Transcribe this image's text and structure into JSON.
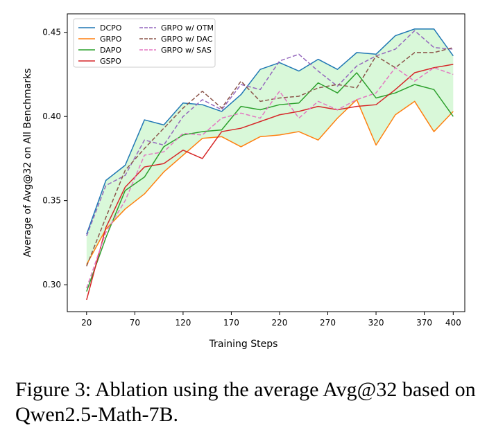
{
  "caption": "Figure 3: Ablation using the average Avg@32 based on Qwen2.5-Math-7B.",
  "chart_data": {
    "type": "line",
    "xlabel": "Training Steps",
    "ylabel": "Average of Avg@32 on All Benchmarks",
    "xlim": [
      0,
      412
    ],
    "ylim": [
      0.284,
      0.461
    ],
    "xticks": [
      20,
      70,
      120,
      170,
      220,
      270,
      320,
      370,
      400
    ],
    "yticks": [
      0.3,
      0.35,
      0.4,
      0.45
    ],
    "ytick_labels": [
      "0.30",
      "0.35",
      "0.40",
      "0.45"
    ],
    "legend_position": "top-left",
    "shaded_band": {
      "between": [
        "DCPO",
        "GRPO"
      ],
      "color": "#ccf5cc"
    },
    "x": [
      20,
      40,
      60,
      80,
      100,
      120,
      140,
      160,
      180,
      200,
      220,
      240,
      260,
      280,
      300,
      320,
      340,
      360,
      380,
      400
    ],
    "series": [
      {
        "name": "DCPO",
        "color": "#1f77b4",
        "dash": "solid",
        "values": [
          0.33,
          0.362,
          0.371,
          0.398,
          0.395,
          0.408,
          0.407,
          0.403,
          0.413,
          0.428,
          0.432,
          0.427,
          0.434,
          0.428,
          0.438,
          0.437,
          0.448,
          0.452,
          0.452,
          0.436
        ]
      },
      {
        "name": "GRPO",
        "color": "#ff7f0e",
        "dash": "solid",
        "values": [
          0.312,
          0.333,
          0.345,
          0.354,
          0.367,
          0.377,
          0.387,
          0.388,
          0.382,
          0.388,
          0.389,
          0.391,
          0.386,
          0.399,
          0.41,
          0.383,
          0.401,
          0.409,
          0.391,
          0.403
        ]
      },
      {
        "name": "DAPO",
        "color": "#2ca02c",
        "dash": "solid",
        "values": [
          0.296,
          0.328,
          0.356,
          0.364,
          0.382,
          0.389,
          0.391,
          0.392,
          0.406,
          0.404,
          0.407,
          0.408,
          0.42,
          0.414,
          0.426,
          0.411,
          0.414,
          0.419,
          0.416,
          0.4
        ]
      },
      {
        "name": "GSPO",
        "color": "#d62728",
        "dash": "solid",
        "values": [
          0.291,
          0.334,
          0.358,
          0.37,
          0.372,
          0.38,
          0.375,
          0.391,
          0.393,
          0.397,
          0.401,
          0.403,
          0.406,
          0.404,
          0.406,
          0.407,
          0.416,
          0.426,
          0.429,
          0.431
        ]
      },
      {
        "name": "GRPO w/ OTM",
        "color": "#9467bd",
        "dash": "dashed",
        "values": [
          0.329,
          0.359,
          0.365,
          0.386,
          0.383,
          0.4,
          0.41,
          0.404,
          0.419,
          0.416,
          0.433,
          0.437,
          0.427,
          0.418,
          0.43,
          0.436,
          0.44,
          0.451,
          0.441,
          0.44
        ]
      },
      {
        "name": "GRPO w/ DAC",
        "color": "#8c564b",
        "dash": "dashed",
        "values": [
          0.311,
          0.34,
          0.368,
          0.381,
          0.393,
          0.405,
          0.415,
          0.405,
          0.421,
          0.409,
          0.411,
          0.412,
          0.417,
          0.419,
          0.417,
          0.436,
          0.429,
          0.438,
          0.438,
          0.441
        ]
      },
      {
        "name": "GRPO w/ SAS",
        "color": "#e377c2",
        "dash": "dashed",
        "values": [
          0.298,
          0.331,
          0.35,
          0.377,
          0.379,
          0.39,
          0.389,
          0.399,
          0.402,
          0.399,
          0.415,
          0.399,
          0.409,
          0.404,
          0.41,
          0.414,
          0.429,
          0.421,
          0.429,
          0.425
        ]
      }
    ]
  }
}
